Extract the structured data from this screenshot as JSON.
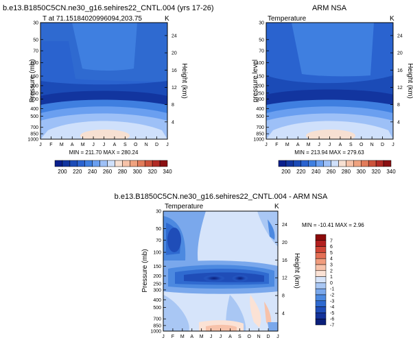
{
  "colors": {
    "levels": [
      "#0a1f8c",
      "#12359f",
      "#1b4bb7",
      "#2a63cf",
      "#3f7fe0",
      "#6a9ff0",
      "#9dc0f7",
      "#cfe0fb",
      "#f7e0d2",
      "#f6c2a8",
      "#efa27f",
      "#e17c5b",
      "#cc533c",
      "#b22c26",
      "#8a1012"
    ],
    "diff_levels": [
      "#0b1f7a",
      "#14339b",
      "#1f4db8",
      "#2f6ad0",
      "#4c89e0",
      "#7aa8ec",
      "#a9c7f4",
      "#d6e4fa",
      "#fbe2d5",
      "#f7c2aa",
      "#f19c7d",
      "#e46f55",
      "#d04536",
      "#b31f1e",
      "#8c0a0a"
    ]
  },
  "chart_data": [
    {
      "type": "heatmap",
      "title": "b.e13.B1850C5CN.ne30_g16.sehires22_CNTL.004 (yrs 17-26)",
      "subtitle_left": "T at 71.15184020996094,203.75",
      "subtitle_right": "K",
      "ylabel": "Pressure (mb)",
      "ylabel_right": "Height (km)",
      "x_ticks": [
        "J",
        "F",
        "M",
        "A",
        "M",
        "J",
        "J",
        "A",
        "S",
        "O",
        "N",
        "D",
        "J"
      ],
      "y_ticks": [
        "30",
        "50",
        "70",
        "100",
        "150",
        "200",
        "250",
        "300",
        "400",
        "500",
        "700",
        "850",
        "1000"
      ],
      "y_right_ticks": [
        "24",
        "20",
        "16",
        "12",
        "8",
        "4"
      ],
      "minmax": "MIN = 211.70   MAX = 280.24",
      "colorbar_labels": [
        "200",
        "220",
        "240",
        "260",
        "280",
        "300",
        "320",
        "340"
      ]
    },
    {
      "type": "heatmap",
      "title": "ARM NSA",
      "subtitle_left": "Temperature",
      "subtitle_right": "K",
      "ylabel": "pressure level",
      "ylabel_right": "Height (km)",
      "x_ticks": [
        "J",
        "F",
        "M",
        "A",
        "M",
        "J",
        "J",
        "A",
        "S",
        "O",
        "N",
        "D",
        "J"
      ],
      "y_ticks": [
        "30",
        "50",
        "70",
        "100",
        "150",
        "200",
        "250",
        "300",
        "400",
        "500",
        "700",
        "850",
        "1000"
      ],
      "y_right_ticks": [
        "24",
        "20",
        "16",
        "12",
        "8",
        "4"
      ],
      "minmax": "MIN = 213.94   MAX = 279.63",
      "colorbar_labels": [
        "200",
        "220",
        "240",
        "260",
        "280",
        "300",
        "320",
        "340"
      ]
    },
    {
      "type": "heatmap",
      "title": "b.e13.B1850C5CN.ne30_g16.sehires22_CNTL.004 - ARM NSA",
      "subtitle_left": "Temperature",
      "subtitle_right": "K",
      "ylabel": "Pressure (mb)",
      "ylabel_right": "Height (km)",
      "x_ticks": [
        "J",
        "F",
        "M",
        "A",
        "M",
        "J",
        "J",
        "A",
        "S",
        "O",
        "N",
        "D",
        "J"
      ],
      "y_ticks": [
        "30",
        "50",
        "70",
        "100",
        "150",
        "200",
        "250",
        "300",
        "400",
        "500",
        "700",
        "850",
        "1000"
      ],
      "y_right_ticks": [
        "24",
        "20",
        "16",
        "12",
        "8",
        "4"
      ],
      "minmax": "MIN = -10.41 MAX =   2.96",
      "colorbar_labels": [
        "7",
        "6",
        "5",
        "4",
        "3",
        "2",
        "1",
        "0",
        "-1",
        "-2",
        "-3",
        "-4",
        "-5",
        "-6",
        "-7"
      ]
    }
  ]
}
